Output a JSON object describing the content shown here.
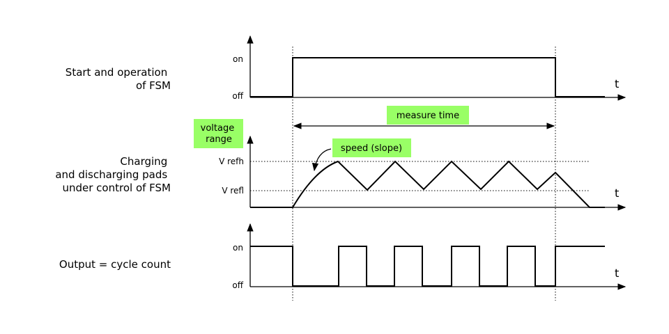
{
  "colors": {
    "highlight": "#99ff66",
    "ink": "#000000"
  },
  "rows": {
    "fsm": {
      "label_lines": [
        "Start and operation",
        "of FSM"
      ],
      "on": "on",
      "off": "off",
      "t": "t"
    },
    "pads": {
      "label_lines": [
        "Charging",
        "and discharging pads",
        "under control of FSM"
      ],
      "ref_high": "V refh",
      "ref_low": "V refl",
      "t": "t"
    },
    "output": {
      "label_lines": [
        "Output = cycle count"
      ],
      "on": "on",
      "off": "off",
      "t": "t"
    }
  },
  "annotations": {
    "measure_time": "measure time",
    "voltage_range_lines": [
      "voltage",
      "range"
    ],
    "slope": "speed (slope)"
  }
}
